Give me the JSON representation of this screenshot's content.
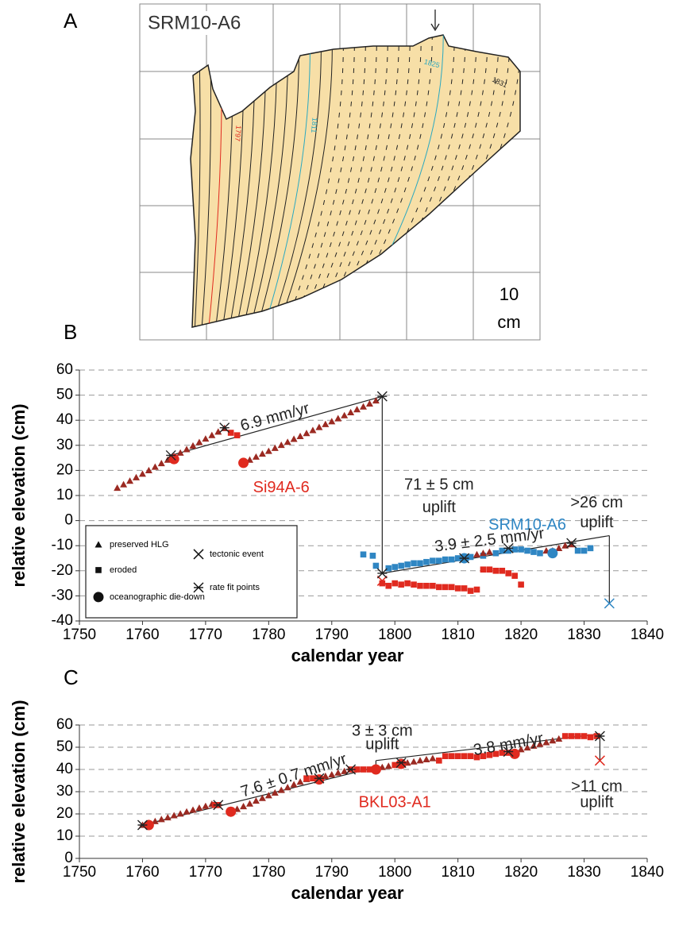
{
  "panel_a": {
    "label": "A",
    "title": "SRM10-A6",
    "scale": [
      "10",
      "cm"
    ],
    "year_labels": [
      "1797",
      "1811",
      "1825",
      "1831"
    ]
  },
  "chart_data": [
    {
      "type": "scatter",
      "panel": "B",
      "xlabel": "calendar year",
      "ylabel": "relative elevation (cm)",
      "xlim": [
        1750,
        1840
      ],
      "xticks": [
        1750,
        1760,
        1770,
        1780,
        1790,
        1800,
        1810,
        1820,
        1830,
        1840
      ],
      "ylim": [
        -40,
        60
      ],
      "yticks": [
        -40,
        -30,
        -20,
        -10,
        0,
        10,
        20,
        30,
        40,
        50,
        60
      ],
      "grid": true,
      "legend_position": "lower left",
      "legend": [
        {
          "label": "preserved HLG",
          "marker": "triangle"
        },
        {
          "label": "eroded",
          "marker": "square"
        },
        {
          "label": "oceanographic die-down",
          "marker": "circle"
        },
        {
          "label": "tectonic event",
          "marker": "x"
        },
        {
          "label": "rate fit points",
          "marker": "asterisk"
        }
      ],
      "series": [
        {
          "marker": "triangle",
          "color": "#9b2a22",
          "x": [
            1756,
            1757,
            1758,
            1759,
            1760,
            1761,
            1762,
            1763,
            1764,
            1765,
            1766,
            1767,
            1768,
            1769,
            1770,
            1771,
            1772,
            1773,
            1777,
            1778,
            1779,
            1780,
            1781,
            1782,
            1783,
            1784,
            1785,
            1786,
            1787,
            1788,
            1789,
            1790,
            1791,
            1792,
            1793,
            1794,
            1795,
            1796,
            1797
          ],
          "values": [
            13,
            14.4,
            15.8,
            17.2,
            18.6,
            20,
            21.4,
            22.8,
            24.2,
            25.6,
            27,
            28.4,
            29.8,
            31.2,
            32.6,
            34,
            35.4,
            36.8,
            24.2,
            25.4,
            26.6,
            27.7,
            28.9,
            30.1,
            31.3,
            32.5,
            33.6,
            34.8,
            36,
            37.2,
            38.4,
            39.5,
            40.7,
            41.9,
            43.1,
            44.3,
            45.4,
            46.6,
            47.8
          ]
        },
        {
          "marker": "square",
          "color": "#e02a1f",
          "x": [
            1774,
            1775,
            1798,
            1799,
            1800,
            1801,
            1802,
            1803,
            1804,
            1805,
            1806,
            1807,
            1808,
            1809,
            1810,
            1811,
            1812,
            1813,
            1814,
            1815,
            1816,
            1817,
            1818,
            1819,
            1820
          ],
          "values": [
            35,
            34,
            -25,
            -26,
            -25,
            -25.5,
            -25,
            -25.5,
            -26,
            -26,
            -26,
            -26.5,
            -26.5,
            -26.5,
            -27,
            -27,
            -28,
            -27.5,
            -19.5,
            -19.5,
            -20,
            -20,
            -21,
            -22,
            -25.5
          ]
        },
        {
          "marker": "circle",
          "color": "#e02a1f",
          "x": [
            1765,
            1776
          ],
          "values": [
            24.5,
            23
          ]
        },
        {
          "marker": "asterisk",
          "color": "#222222",
          "x": [
            1764.5,
            1773,
            1798
          ],
          "values": [
            26,
            37,
            49.5
          ]
        },
        {
          "marker": "x",
          "color": "#e02a1f",
          "x": [
            1798
          ],
          "values": [
            -24
          ]
        },
        {
          "marker": "square",
          "color": "#2f86c3",
          "x": [
            1795,
            1796.5,
            1797,
            1799,
            1800,
            1801,
            1802,
            1803,
            1804,
            1805,
            1806,
            1807,
            1808,
            1809,
            1810,
            1812,
            1814,
            1816,
            1817,
            1818,
            1819,
            1820,
            1821,
            1822,
            1823,
            1829,
            1830,
            1831
          ],
          "values": [
            -13.5,
            -14,
            -18,
            -19,
            -18.5,
            -18,
            -17.5,
            -17,
            -17,
            -16.5,
            -16,
            -16,
            -15.5,
            -15.5,
            -15,
            -14.5,
            -14,
            -13,
            -12,
            -12,
            -11.5,
            -11.5,
            -12,
            -12.5,
            -13,
            -12,
            -12,
            -11
          ]
        },
        {
          "marker": "triangle",
          "color": "#9b2a22",
          "x": [
            1813,
            1814,
            1815,
            1824,
            1825,
            1826,
            1827,
            1828
          ],
          "values": [
            -13.5,
            -13,
            -12.5,
            -12,
            -12,
            -11,
            -10,
            -9.5
          ]
        },
        {
          "marker": "circle",
          "color": "#2f86c3",
          "x": [
            1811,
            1825
          ],
          "values": [
            -15,
            -13
          ]
        },
        {
          "marker": "asterisk",
          "color": "#222222",
          "x": [
            1798,
            1811,
            1818,
            1828
          ],
          "values": [
            -21,
            -15,
            -11,
            -9
          ]
        },
        {
          "marker": "x",
          "color": "#2f86c3",
          "x": [
            1834
          ],
          "values": [
            -33
          ]
        }
      ],
      "lines": [
        {
          "x": [
            1764.5,
            1798
          ],
          "y": [
            26,
            49.5
          ]
        },
        {
          "x": [
            1798,
            1798
          ],
          "y": [
            49.5,
            -21
          ]
        },
        {
          "x": [
            1798,
            1834
          ],
          "y": [
            -21,
            -6
          ]
        },
        {
          "x": [
            1834,
            1834
          ],
          "y": [
            -6,
            -33
          ]
        }
      ],
      "annotations": [
        {
          "text": "6.9 mm/yr"
        },
        {
          "text": "71 ± 5 cm"
        },
        {
          "text": "uplift"
        },
        {
          "text": "SRM10-A6",
          "color": "#2f86c3"
        },
        {
          "text": "3.9 ± 2.5 mm/yr"
        },
        {
          "text": ">26 cm"
        },
        {
          "text": "uplift"
        },
        {
          "text": "Si94A-6",
          "color": "#e02a1f"
        }
      ]
    },
    {
      "type": "scatter",
      "panel": "C",
      "xlabel": "calendar year",
      "ylabel": "relative elevation (cm)",
      "xlim": [
        1750,
        1840
      ],
      "xticks": [
        1750,
        1760,
        1770,
        1780,
        1790,
        1800,
        1810,
        1820,
        1830,
        1840
      ],
      "ylim": [
        0,
        60
      ],
      "yticks": [
        0,
        10,
        20,
        30,
        40,
        50,
        60
      ],
      "grid": true,
      "series": [
        {
          "marker": "triangle",
          "color": "#9b2a22",
          "x": [
            1760,
            1761,
            1762,
            1763,
            1764,
            1765,
            1766,
            1767,
            1768,
            1769,
            1770,
            1771,
            1775,
            1776,
            1777,
            1778,
            1779,
            1780,
            1781,
            1782,
            1783,
            1784,
            1785,
            1786,
            1789,
            1790,
            1791,
            1792,
            1798,
            1799,
            1802,
            1803,
            1804,
            1805,
            1806,
            1820,
            1821,
            1822,
            1823,
            1824,
            1825,
            1826
          ],
          "values": [
            15,
            15.9,
            16.7,
            17.6,
            18.4,
            19.3,
            20.1,
            21,
            21.8,
            22.7,
            23.5,
            24.4,
            22.2,
            23.4,
            24.6,
            25.9,
            27.1,
            28.3,
            29.5,
            30.7,
            31.9,
            33.2,
            34.4,
            35.6,
            37,
            37.7,
            38.5,
            39.2,
            41,
            41.5,
            43,
            43.5,
            44,
            44.5,
            45,
            49,
            49.8,
            50.6,
            51.4,
            52.2,
            53,
            53.8
          ]
        },
        {
          "marker": "square",
          "color": "#e02a1f",
          "x": [
            1771.5,
            1772,
            1786,
            1787,
            1788,
            1793,
            1794,
            1795,
            1796,
            1797,
            1800,
            1801,
            1807,
            1808,
            1809,
            1810,
            1811,
            1812,
            1813,
            1814,
            1815,
            1816,
            1817,
            1818,
            1827,
            1828,
            1829,
            1830,
            1831,
            1832
          ],
          "values": [
            24,
            24,
            36,
            36,
            36,
            40,
            40,
            40,
            40,
            40,
            42,
            43,
            44,
            46,
            46,
            46,
            46,
            46,
            45.5,
            46,
            46.5,
            47,
            47.5,
            47.5,
            55,
            55,
            55,
            55,
            54.5,
            55
          ]
        },
        {
          "marker": "circle",
          "color": "#e02a1f",
          "x": [
            1761,
            1774,
            1788,
            1797,
            1801,
            1819
          ],
          "values": [
            15,
            21,
            35.5,
            40,
            42.5,
            47
          ]
        },
        {
          "marker": "asterisk",
          "color": "#222222",
          "x": [
            1760,
            1772,
            1788,
            1793,
            1801,
            1818,
            1832.5
          ],
          "values": [
            15,
            24,
            36,
            40,
            43,
            48,
            55
          ]
        },
        {
          "marker": "x",
          "color": "#e02a1f",
          "x": [
            1832.5
          ],
          "values": [
            44
          ]
        }
      ],
      "lines": [
        {
          "x": [
            1760,
            1797
          ],
          "y": [
            15,
            41
          ]
        },
        {
          "x": [
            1797,
            1797
          ],
          "y": [
            41,
            44
          ]
        },
        {
          "x": [
            1797,
            1832.5
          ],
          "y": [
            44,
            56
          ]
        },
        {
          "x": [
            1832.5,
            1832.5
          ],
          "y": [
            56,
            44
          ]
        }
      ],
      "annotations": [
        {
          "text": "3 ± 3 cm"
        },
        {
          "text": "uplift"
        },
        {
          "text": "7.6 ± 0.7 mm/yr"
        },
        {
          "text": "3.8 mm/yr"
        },
        {
          "text": ">11 cm"
        },
        {
          "text": "uplift"
        },
        {
          "text": "BKL03-A1",
          "color": "#e02a1f"
        }
      ]
    }
  ]
}
